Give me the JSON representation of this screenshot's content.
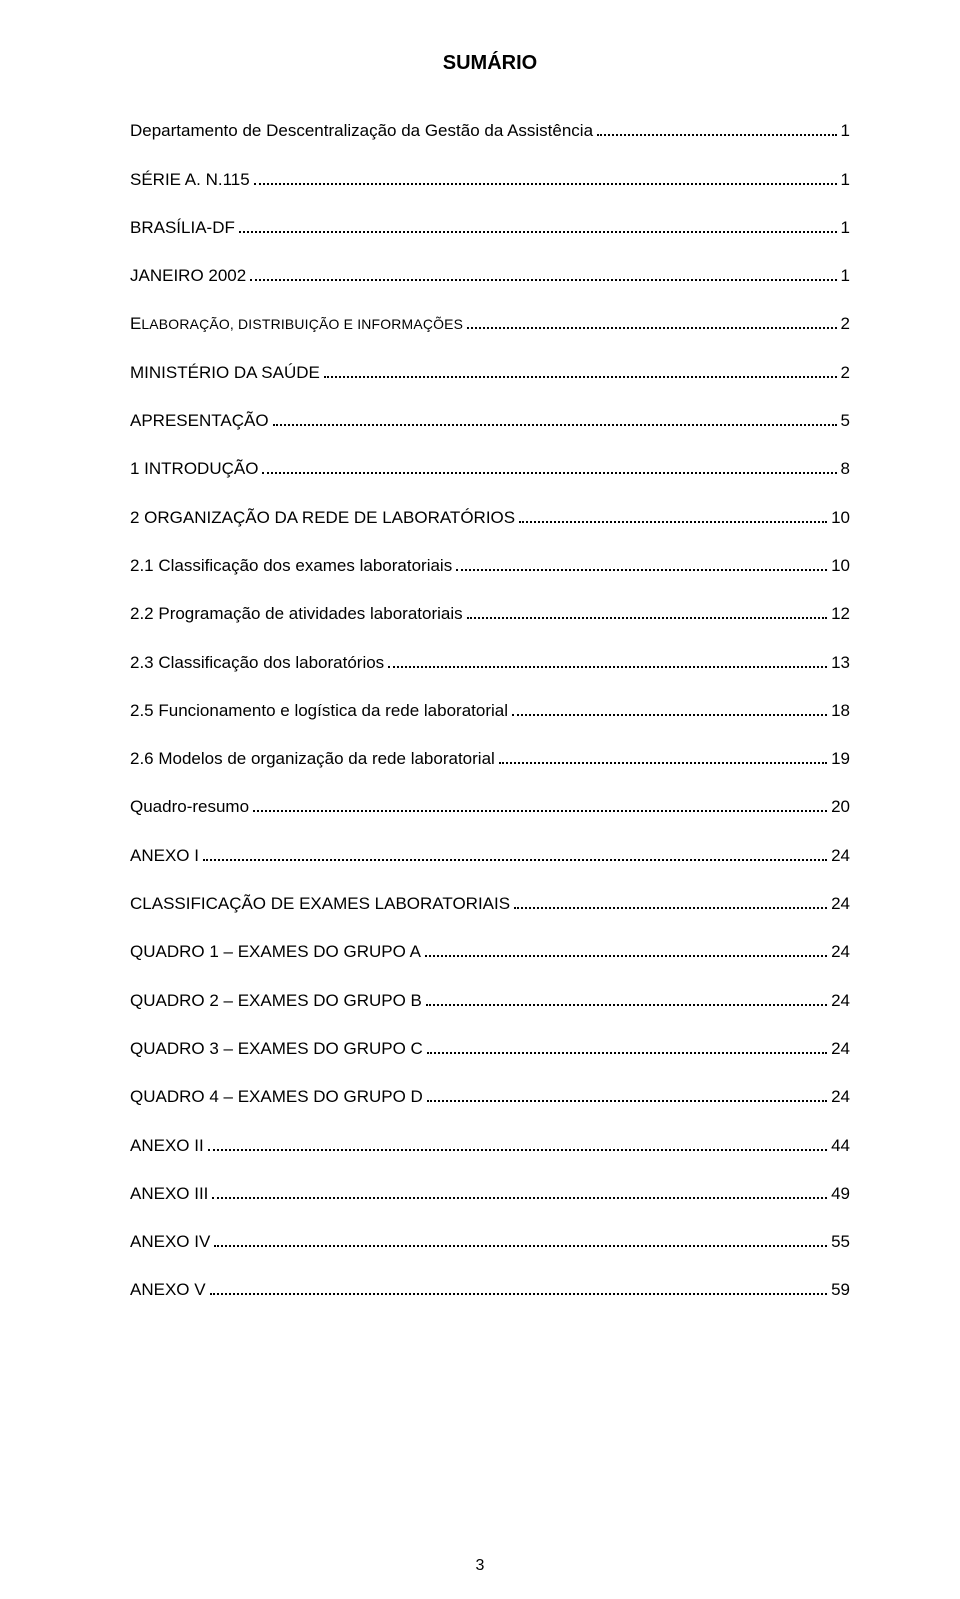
{
  "title": "SUMÁRIO",
  "page_number": "3",
  "entries": [
    {
      "label": "Departamento de Descentralização da Gestão da Assistência",
      "page": "1",
      "level": 1,
      "smallcaps": false
    },
    {
      "label": "SÉRIE A. N.115",
      "page": "1",
      "level": 1,
      "smallcaps": false
    },
    {
      "label": "BRASÍLIA-DF",
      "page": "1",
      "level": 1,
      "smallcaps": false
    },
    {
      "label": "JANEIRO 2002",
      "page": "1",
      "level": 1,
      "smallcaps": false
    },
    {
      "label_first": "E",
      "label_rest": "laboração, distribuição e informações",
      "page": "2",
      "level": 1,
      "smallcaps": true
    },
    {
      "label": "MINISTÉRIO DA SAÚDE",
      "page": "2",
      "level": 1,
      "smallcaps": false
    },
    {
      "label": "APRESENTAÇÃO",
      "page": "5",
      "level": 1,
      "smallcaps": false
    },
    {
      "label": "1 INTRODUÇÃO",
      "page": "8",
      "level": 1,
      "smallcaps": false
    },
    {
      "label": "2 ORGANIZAÇÃO DA REDE DE LABORATÓRIOS",
      "page": "10",
      "level": 1,
      "smallcaps": false
    },
    {
      "label": "2.1 Classificação dos exames laboratoriais",
      "page": "10",
      "level": 2,
      "smallcaps": false
    },
    {
      "label": "2.2 Programação de atividades laboratoriais",
      "page": "12",
      "level": 2,
      "smallcaps": false
    },
    {
      "label": "2.3 Classificação dos laboratórios",
      "page": "13",
      "level": 2,
      "smallcaps": false
    },
    {
      "label": "2.5 Funcionamento e logística da rede laboratorial",
      "page": "18",
      "level": 2,
      "smallcaps": false
    },
    {
      "label": "2.6 Modelos de organização da rede laboratorial",
      "page": "19",
      "level": 2,
      "smallcaps": false
    },
    {
      "label": "Quadro-resumo",
      "page": "20",
      "level": 1,
      "smallcaps": false
    },
    {
      "label": "ANEXO I",
      "page": "24",
      "level": 1,
      "smallcaps": false
    },
    {
      "label": "CLASSIFICAÇÃO DE EXAMES LABORATORIAIS",
      "page": "24",
      "level": 1,
      "smallcaps": false
    },
    {
      "label": "QUADRO 1 – EXAMES DO GRUPO A",
      "page": "24",
      "level": 1,
      "smallcaps": false
    },
    {
      "label": "QUADRO 2 – EXAMES DO GRUPO B",
      "page": "24",
      "level": 1,
      "smallcaps": false
    },
    {
      "label": "QUADRO 3 – EXAMES DO GRUPO C",
      "page": "24",
      "level": 1,
      "smallcaps": false
    },
    {
      "label": "QUADRO 4 – EXAMES DO GRUPO D",
      "page": "24",
      "level": 1,
      "smallcaps": false
    },
    {
      "label": "ANEXO II",
      "page": "44",
      "level": 1,
      "smallcaps": false
    },
    {
      "label": "ANEXO III",
      "page": "49",
      "level": 1,
      "smallcaps": false
    },
    {
      "label": "ANEXO IV",
      "page": "55",
      "level": 1,
      "smallcaps": false
    },
    {
      "label": "ANEXO V",
      "page": "59",
      "level": 1,
      "smallcaps": false
    }
  ]
}
